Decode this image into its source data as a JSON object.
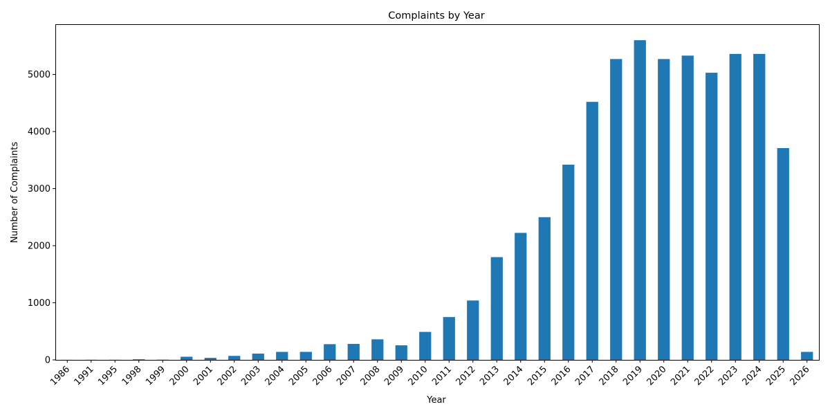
{
  "chart_data": {
    "type": "bar",
    "title": "Complaints by Year",
    "xlabel": "Year",
    "ylabel": "Number of Complaints",
    "categories": [
      "1986",
      "1991",
      "1995",
      "1998",
      "1999",
      "2000",
      "2001",
      "2002",
      "2003",
      "2004",
      "2005",
      "2006",
      "2007",
      "2008",
      "2009",
      "2010",
      "2011",
      "2012",
      "2013",
      "2014",
      "2015",
      "2016",
      "2017",
      "2018",
      "2019",
      "2020",
      "2021",
      "2022",
      "2023",
      "2024",
      "2025",
      "2026"
    ],
    "values": [
      1,
      2,
      2,
      10,
      3,
      55,
      35,
      70,
      110,
      140,
      140,
      275,
      280,
      360,
      255,
      490,
      750,
      1040,
      1800,
      2225,
      2500,
      3420,
      4520,
      5270,
      5600,
      5270,
      5330,
      5030,
      5360,
      5360,
      3710,
      140
    ],
    "ylim": [
      0,
      5880
    ],
    "yticks": [
      0,
      1000,
      2000,
      3000,
      4000,
      5000
    ],
    "grid": false,
    "bar_color": "#1f77b4",
    "xtick_rotation": 45
  }
}
